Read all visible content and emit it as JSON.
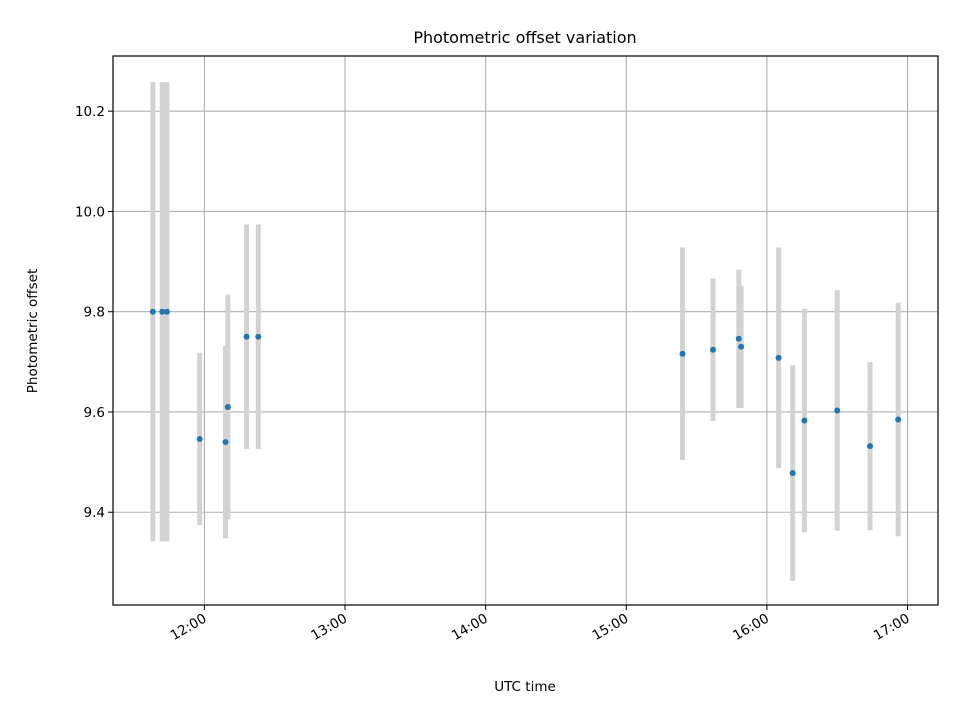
{
  "chart_data": {
    "type": "scatter",
    "title": "Photometric offset variation",
    "xlabel": "UTC time",
    "ylabel": "Photometric offset",
    "xlim": [
      "11:21",
      "17:13"
    ],
    "ylim": [
      9.215,
      10.31
    ],
    "x_ticks": [
      "12:00",
      "13:00",
      "14:00",
      "15:00",
      "16:00",
      "17:00"
    ],
    "y_ticks": [
      "9.4",
      "9.6",
      "9.8",
      "10.0",
      "10.2"
    ],
    "grid": true,
    "legend": "none",
    "series": [
      {
        "color": "#1f77b4",
        "errorbar_color": "#d3d3d3",
        "points": [
          {
            "x": "11:38",
            "y": 9.8,
            "err": 0.458
          },
          {
            "x": "11:42",
            "y": 9.8,
            "err": 0.458
          },
          {
            "x": "11:44",
            "y": 9.8,
            "err": 0.458
          },
          {
            "x": "11:58",
            "y": 9.546,
            "err": 0.172
          },
          {
            "x": "12:09",
            "y": 9.54,
            "err": 0.192
          },
          {
            "x": "12:10",
            "y": 9.61,
            "err": 0.224
          },
          {
            "x": "12:18",
            "y": 9.75,
            "err": 0.224
          },
          {
            "x": "12:23",
            "y": 9.75,
            "err": 0.224
          },
          {
            "x": "15:24",
            "y": 9.716,
            "err": 0.212
          },
          {
            "x": "15:37",
            "y": 9.724,
            "err": 0.142
          },
          {
            "x": "15:48",
            "y": 9.746,
            "err": 0.138
          },
          {
            "x": "15:49",
            "y": 9.73,
            "err": 0.122
          },
          {
            "x": "16:05",
            "y": 9.708,
            "err": 0.22
          },
          {
            "x": "16:11",
            "y": 9.478,
            "err": 0.215
          },
          {
            "x": "16:16",
            "y": 9.583,
            "err": 0.223
          },
          {
            "x": "16:30",
            "y": 9.603,
            "err": 0.24
          },
          {
            "x": "16:44",
            "y": 9.532,
            "err": 0.168
          },
          {
            "x": "16:56",
            "y": 9.585,
            "err": 0.233
          }
        ]
      }
    ]
  }
}
